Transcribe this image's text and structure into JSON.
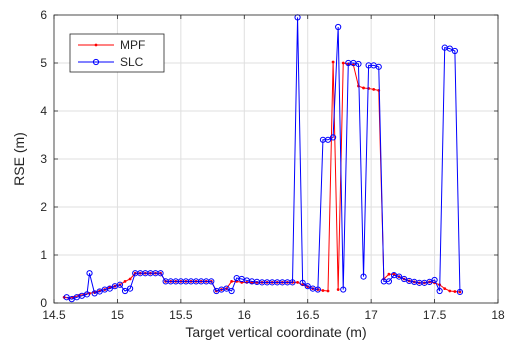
{
  "chart_data": {
    "type": "line",
    "xlabel": "Target vertical coordinate (m)",
    "ylabel": "RSE (m)",
    "xlim": [
      14.5,
      18
    ],
    "ylim": [
      0,
      6
    ],
    "xticks": [
      "14.5",
      "15",
      "15.5",
      "16",
      "16.5",
      "17",
      "17.5",
      "18"
    ],
    "yticks": [
      "0",
      "1",
      "2",
      "3",
      "4",
      "5",
      "6"
    ],
    "grid": true,
    "legend_position": "top-left",
    "series": [
      {
        "name": "MPF",
        "color": "#ff0000",
        "marker": "dot",
        "x": [
          14.58,
          14.62,
          14.65,
          14.7,
          14.74,
          14.78,
          14.82,
          14.86,
          14.9,
          14.94,
          14.98,
          15.02,
          15.06,
          15.1,
          15.14,
          15.18,
          15.22,
          15.26,
          15.3,
          15.34,
          15.38,
          15.42,
          15.46,
          15.5,
          15.54,
          15.58,
          15.62,
          15.66,
          15.7,
          15.74,
          15.78,
          15.82,
          15.86,
          15.9,
          15.94,
          15.98,
          16.02,
          16.06,
          16.1,
          16.14,
          16.18,
          16.22,
          16.26,
          16.3,
          16.34,
          16.38,
          16.42,
          16.46,
          16.5,
          16.54,
          16.58,
          16.62,
          16.66,
          16.7,
          16.74,
          16.78,
          16.82,
          16.86,
          16.9,
          16.94,
          16.98,
          17.02,
          17.06,
          17.1,
          17.14,
          17.18,
          17.22,
          17.26,
          17.3,
          17.34,
          17.38,
          17.42,
          17.46,
          17.5,
          17.54,
          17.58,
          17.62,
          17.66,
          17.7
        ],
        "y": [
          0.12,
          0.1,
          0.12,
          0.16,
          0.18,
          0.2,
          0.22,
          0.25,
          0.28,
          0.32,
          0.35,
          0.38,
          0.45,
          0.5,
          0.62,
          0.62,
          0.62,
          0.62,
          0.62,
          0.62,
          0.45,
          0.45,
          0.45,
          0.45,
          0.45,
          0.45,
          0.45,
          0.45,
          0.45,
          0.45,
          0.25,
          0.28,
          0.3,
          0.45,
          0.45,
          0.43,
          0.43,
          0.43,
          0.43,
          0.43,
          0.43,
          0.43,
          0.43,
          0.43,
          0.43,
          0.43,
          0.43,
          0.38,
          0.34,
          0.3,
          0.28,
          0.26,
          0.25,
          5.02,
          0.28,
          5.0,
          4.98,
          4.96,
          4.52,
          4.48,
          4.47,
          4.45,
          4.43,
          0.5,
          0.6,
          0.6,
          0.55,
          0.5,
          0.46,
          0.44,
          0.42,
          0.42,
          0.44,
          0.42,
          0.38,
          0.3,
          0.25,
          0.24,
          0.23
        ]
      },
      {
        "name": "SLC",
        "color": "#0000ff",
        "marker": "circle",
        "x": [
          14.6,
          14.64,
          14.68,
          14.72,
          14.76,
          14.78,
          14.82,
          14.86,
          14.9,
          14.94,
          14.98,
          15.02,
          15.06,
          15.1,
          15.14,
          15.18,
          15.22,
          15.26,
          15.3,
          15.34,
          15.38,
          15.42,
          15.46,
          15.5,
          15.54,
          15.58,
          15.62,
          15.66,
          15.7,
          15.74,
          15.78,
          15.82,
          15.86,
          15.9,
          15.94,
          15.98,
          16.02,
          16.06,
          16.1,
          16.14,
          16.18,
          16.22,
          16.26,
          16.3,
          16.34,
          16.38,
          16.42,
          16.46,
          16.5,
          16.54,
          16.58,
          16.62,
          16.66,
          16.7,
          16.74,
          16.78,
          16.82,
          16.86,
          16.9,
          16.94,
          16.98,
          17.02,
          17.06,
          17.1,
          17.14,
          17.18,
          17.22,
          17.26,
          17.3,
          17.34,
          17.38,
          17.42,
          17.46,
          17.5,
          17.54,
          17.58,
          17.62,
          17.66,
          17.7
        ],
        "y": [
          0.12,
          0.08,
          0.12,
          0.15,
          0.18,
          0.62,
          0.2,
          0.24,
          0.28,
          0.3,
          0.35,
          0.38,
          0.25,
          0.3,
          0.62,
          0.62,
          0.62,
          0.62,
          0.62,
          0.62,
          0.45,
          0.45,
          0.45,
          0.45,
          0.45,
          0.45,
          0.45,
          0.45,
          0.45,
          0.45,
          0.25,
          0.28,
          0.3,
          0.25,
          0.52,
          0.5,
          0.47,
          0.45,
          0.44,
          0.43,
          0.43,
          0.43,
          0.43,
          0.43,
          0.43,
          0.43,
          5.95,
          0.42,
          0.35,
          0.3,
          0.28,
          3.4,
          3.4,
          3.45,
          5.75,
          0.28,
          5.0,
          5.0,
          4.98,
          0.55,
          4.95,
          4.95,
          4.92,
          0.45,
          0.45,
          0.58,
          0.55,
          0.5,
          0.46,
          0.44,
          0.42,
          0.42,
          0.44,
          0.48,
          0.25,
          5.32,
          5.3,
          5.25,
          0.23
        ]
      }
    ]
  }
}
